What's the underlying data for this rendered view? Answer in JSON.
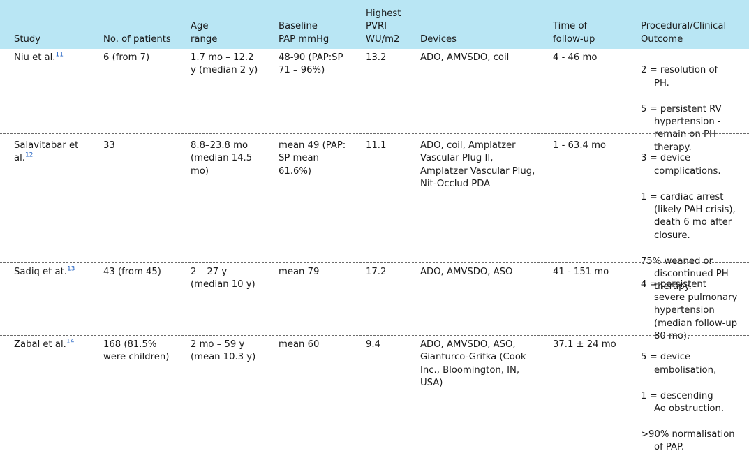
{
  "table": {
    "headers": {
      "study": "Study",
      "patients": "No. of patients",
      "age": "Age\nrange",
      "pap": "Baseline\nPAP mmHg",
      "pvri": "Highest\nPVRI\nWU/m2",
      "devices": "Devices",
      "followup": "Time of\nfollow-up",
      "outcome": "Procedural/Clinical\nOutcome"
    },
    "rows": [
      {
        "study": "Niu et al.",
        "ref": "11",
        "patients": "6 (from 7)",
        "age": "1.7 mo – 12.2\ny (median 2 y)",
        "pap": "48-90 (PAP:SP\n71 – 96%)",
        "pvri": "13.2",
        "devices": "ADO, AMVSDO, coil",
        "followup": "4 - 46 mo",
        "outcome": [
          "2 = resolution of\nPH.",
          "5 = persistent RV\nhypertension -\nremain on PH\ntherapy."
        ]
      },
      {
        "study": "Salavitabar et\nal.",
        "ref": "12",
        "patients": "33",
        "age": "8.8–23.8 mo\n(median 14.5\nmo)",
        "pap": "mean 49 (PAP:\nSP mean\n61.6%)",
        "pvri": "11.1",
        "devices": "ADO, coil, Amplatzer\nVascular Plug II,\nAmplatzer Vascular Plug,\nNit-Occlud PDA",
        "followup": "1 - 63.4 mo",
        "outcome": [
          "3 = device\ncomplications.",
          "1 = cardiac arrest\n(likely PAH crisis),\ndeath 6 mo after\nclosure.",
          "75% weaned or\ndiscontinued PH\ntherapy."
        ]
      },
      {
        "study": "Sadiq et at.",
        "ref": "13",
        "patients": "43 (from 45)",
        "age": "2 – 27 y\n(median 10 y)",
        "pap": "mean 79",
        "pvri": "17.2",
        "devices": "ADO, AMVSDO, ASO",
        "followup": "41 - 151 mo",
        "outcome": [
          "4 = persistent\nsevere pulmonary\nhypertension\n(median follow-up\n80 mo)."
        ]
      },
      {
        "study": "Zabal et al.",
        "ref": "14",
        "patients": "168 (81.5%\nwere children)",
        "age": "2 mo – 59 y\n(mean 10.3 y)",
        "pap": "mean 60",
        "pvri": "9.4",
        "devices": "ADO, AMVSDO, ASO,\nGianturco-Grifka (Cook\nInc., Bloomington, IN,\nUSA)",
        "followup": "37.1 ± 24 mo",
        "outcome": [
          "5 = device\nembolisation,",
          "1 = descending\nAo obstruction.",
          ">90% normalisation\nof PAP."
        ]
      }
    ]
  }
}
